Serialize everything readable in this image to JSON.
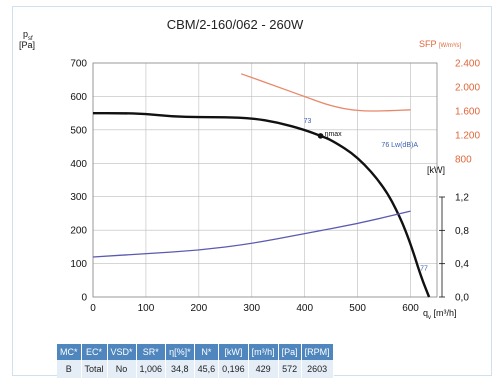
{
  "chart_data": {
    "type": "line",
    "title": "CBM/2-160/062 - 260W",
    "ylabel": "p_sf",
    "ylabel_sub": "sf",
    "ylabel_unit": "[Pa]",
    "xlabel": "q_v [m³/h]",
    "xlabel_sub": "v",
    "xlabel_unit": "[m³/h]",
    "xlim": [
      0,
      650
    ],
    "ylim": [
      0,
      700
    ],
    "x_ticks": [
      0,
      100,
      200,
      300,
      400,
      500,
      600
    ],
    "y_ticks": [
      0,
      100,
      200,
      300,
      400,
      500,
      600,
      700
    ],
    "right_axis_sfp": {
      "label": "SFP",
      "unit": "[W/m³/s]",
      "ticks": [
        "800",
        "1.200",
        "1.600",
        "2.000",
        "2.400"
      ],
      "range": [
        800,
        2400
      ],
      "color": "#e0663a"
    },
    "right_axis_power": {
      "label": "[kW]",
      "ticks": [
        "0,0",
        "0,4",
        "0,8",
        "1,2"
      ],
      "range": [
        0,
        1.2
      ]
    },
    "series": [
      {
        "role": "pressure",
        "color": "#111111",
        "x": [
          0,
          50,
          100,
          150,
          200,
          250,
          300,
          350,
          400,
          430,
          450,
          500,
          550,
          580,
          600,
          620,
          635
        ],
        "y": [
          550,
          550,
          548,
          540,
          538,
          538,
          535,
          522,
          500,
          482,
          470,
          420,
          330,
          240,
          160,
          60,
          0
        ]
      },
      {
        "role": "power",
        "color": "#5a5ab0",
        "axis": "power",
        "x": [
          0,
          100,
          200,
          300,
          400,
          500,
          600
        ],
        "y": [
          0.48,
          0.52,
          0.56,
          0.64,
          0.76,
          0.88,
          1.03
        ]
      },
      {
        "role": "sfp",
        "color": "#e8876a",
        "axis": "sfp",
        "x": [
          280,
          350,
          400,
          450,
          500,
          550,
          600
        ],
        "y": [
          2220,
          2000,
          1840,
          1680,
          1600,
          1600,
          1620
        ]
      }
    ],
    "annotations": [
      {
        "text": "ηmax",
        "x": 430,
        "y": 482,
        "color": "#111111"
      },
      {
        "text": "73",
        "x": 398,
        "y": 520,
        "color": "#3a5fb0"
      },
      {
        "text": "76 Lw(dB)A",
        "x": 545,
        "y": 448,
        "color": "#3a5fb0"
      },
      {
        "text": "77",
        "x": 618,
        "y": 80,
        "color": "#3a5fb0"
      }
    ]
  },
  "table": {
    "headers": [
      "MC*",
      "EC*",
      "VSD*",
      "SR*",
      "η[%]*",
      "N*",
      "[kW]",
      "[m³/h]",
      "[Pa]",
      "[RPM]"
    ],
    "values": [
      "B",
      "Total",
      "No",
      "1,006",
      "34,8",
      "45,6",
      "0,196",
      "429",
      "572",
      "2603"
    ]
  }
}
